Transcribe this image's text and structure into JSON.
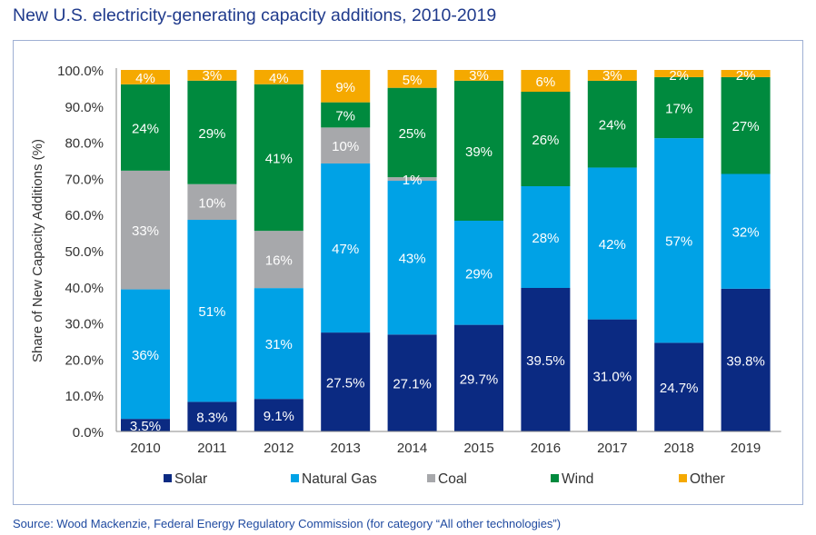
{
  "title": "New U.S. electricity-generating capacity additions, 2010-2019",
  "source": "Source: Wood Mackenzie, Federal Energy Regulatory Commission (for category “All other technologies”)",
  "chart_data": {
    "type": "bar",
    "stacked": true,
    "title": "New U.S. electricity-generating capacity additions, 2010-2019",
    "xlabel": "",
    "ylabel": "Share of New Capacity Additions (%)",
    "ylim": [
      0,
      100
    ],
    "yticks": [
      "0.0%",
      "10.0%",
      "20.0%",
      "30.0%",
      "40.0%",
      "50.0%",
      "60.0%",
      "70.0%",
      "80.0%",
      "90.0%",
      "100.0%"
    ],
    "legend_position": "bottom",
    "grid": false,
    "categories": [
      "2010",
      "2011",
      "2012",
      "2013",
      "2014",
      "2015",
      "2016",
      "2017",
      "2018",
      "2019"
    ],
    "series": [
      {
        "name": "Solar",
        "color": "#0b2a82",
        "values": [
          3.5,
          8.3,
          9.1,
          27.5,
          27.1,
          29.7,
          39.5,
          31.0,
          24.7,
          39.8
        ],
        "labels": [
          "3.5%",
          "8.3%",
          "9.1%",
          "27.5%",
          "27.1%",
          "29.7%",
          "39.5%",
          "31.0%",
          "24.7%",
          "39.8%"
        ]
      },
      {
        "name": "Natural Gas",
        "color": "#00a2e6",
        "values": [
          36,
          51,
          31,
          47,
          43,
          29,
          28,
          42,
          57,
          32
        ],
        "labels": [
          "36%",
          "51%",
          "31%",
          "47%",
          "43%",
          "29%",
          "28%",
          "42%",
          "57%",
          "32%"
        ]
      },
      {
        "name": "Coal",
        "color": "#a7a8ab",
        "values": [
          33,
          10,
          16,
          10,
          1,
          0,
          0,
          0,
          0,
          0
        ],
        "labels": [
          "33%",
          "10%",
          "16%",
          "10%",
          "1%",
          "",
          "",
          "",
          "",
          ""
        ]
      },
      {
        "name": "Wind",
        "color": "#008a3e",
        "values": [
          24,
          29,
          41,
          7,
          25,
          39,
          26,
          24,
          17,
          27
        ],
        "labels": [
          "24%",
          "29%",
          "41%",
          "7%",
          "25%",
          "39%",
          "26%",
          "24%",
          "17%",
          "27%"
        ]
      },
      {
        "name": "Other",
        "color": "#f5a900",
        "values": [
          4,
          3,
          4,
          9,
          5,
          3,
          6,
          3,
          2,
          2
        ],
        "labels": [
          "4%",
          "3%",
          "4%",
          "9%",
          "5%",
          "3%",
          "6%",
          "3%",
          "2%",
          "2%"
        ]
      }
    ]
  }
}
